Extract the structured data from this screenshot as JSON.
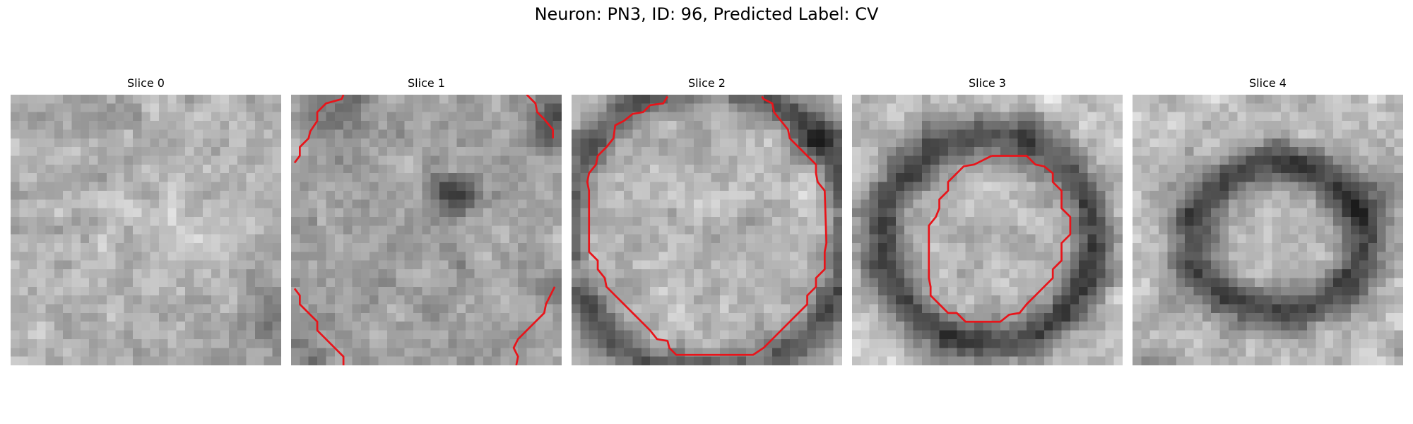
{
  "figure": {
    "title": "Neuron: PN3, ID: 96, Predicted Label: CV"
  },
  "panels": [
    {
      "title": "Slice 0",
      "contour": "none"
    },
    {
      "title": "Slice 1",
      "contour": "partial"
    },
    {
      "title": "Slice 2",
      "contour": "closed"
    },
    {
      "title": "Slice 3",
      "contour": "closed"
    },
    {
      "title": "Slice 4",
      "contour": "none"
    }
  ],
  "colors": {
    "contour": "#e8141a",
    "background": "#ffffff"
  }
}
